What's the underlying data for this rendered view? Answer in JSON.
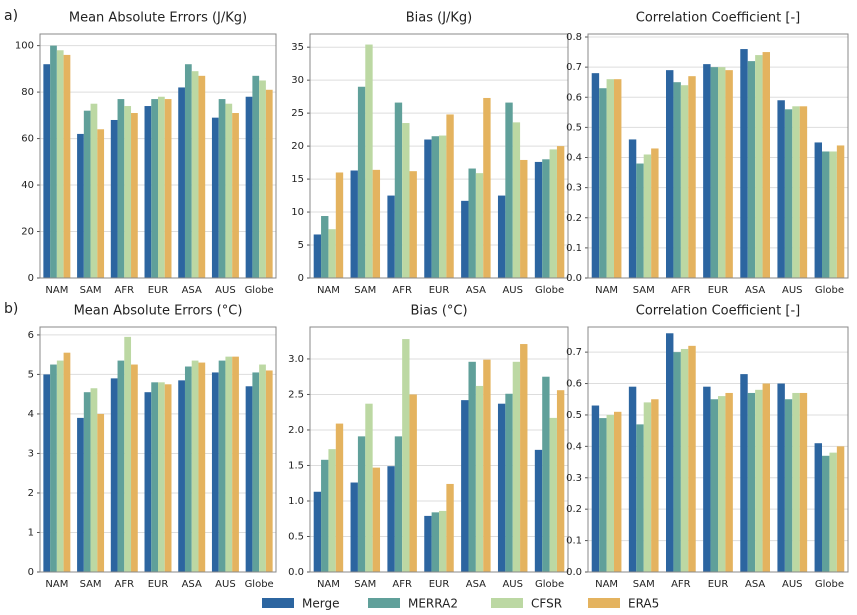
{
  "legend": [
    {
      "name": "Merge",
      "color": "#2c65a0"
    },
    {
      "name": "MERRA2",
      "color": "#60a09a"
    },
    {
      "name": "CFSR",
      "color": "#bcd8a3"
    },
    {
      "name": "ERA5",
      "color": "#e4b35f"
    }
  ],
  "chart_data": [
    {
      "type": "bar",
      "panel_label": "a)",
      "title": "Mean Absolute Errors (J/Kg)",
      "categories": [
        "NAM",
        "SAM",
        "AFR",
        "EUR",
        "ASA",
        "AUS",
        "Globe"
      ],
      "series": [
        {
          "values": [
            92,
            62,
            68,
            74,
            82,
            69,
            78
          ]
        },
        {
          "values": [
            100,
            72,
            77,
            77,
            92,
            77,
            87
          ]
        },
        {
          "values": [
            98,
            75,
            74,
            78,
            89,
            75,
            85
          ]
        },
        {
          "values": [
            96,
            64,
            71,
            77,
            87,
            71,
            81
          ]
        }
      ],
      "ylim": [
        0,
        105
      ],
      "yticks": [
        0,
        20,
        40,
        60,
        80,
        100
      ],
      "grid": true
    },
    {
      "type": "bar",
      "title": "Bias (J/Kg)",
      "categories": [
        "NAM",
        "SAM",
        "AFR",
        "EUR",
        "ASA",
        "AUS",
        "Globe"
      ],
      "series": [
        {
          "values": [
            6.6,
            16.3,
            12.5,
            21,
            11.7,
            12.5,
            17.6
          ]
        },
        {
          "values": [
            9.4,
            29,
            26.6,
            21.5,
            16.6,
            26.6,
            18
          ]
        },
        {
          "values": [
            7.4,
            35.4,
            23.5,
            21.6,
            15.9,
            23.6,
            19.5
          ]
        },
        {
          "values": [
            16,
            16.4,
            16.2,
            24.8,
            27.3,
            17.9,
            20
          ]
        }
      ],
      "ylim": [
        0,
        37
      ],
      "yticks": [
        0,
        5,
        10,
        15,
        20,
        25,
        30,
        35
      ],
      "grid": true
    },
    {
      "type": "bar",
      "title": "Correlation Coefficient [-]",
      "categories": [
        "NAM",
        "SAM",
        "AFR",
        "EUR",
        "ASA",
        "AUS",
        "Globe"
      ],
      "series": [
        {
          "values": [
            0.68,
            0.46,
            0.69,
            0.71,
            0.76,
            0.59,
            0.45
          ]
        },
        {
          "values": [
            0.63,
            0.38,
            0.65,
            0.7,
            0.72,
            0.56,
            0.42
          ]
        },
        {
          "values": [
            0.66,
            0.41,
            0.64,
            0.7,
            0.74,
            0.57,
            0.42
          ]
        },
        {
          "values": [
            0.66,
            0.43,
            0.67,
            0.69,
            0.75,
            0.57,
            0.44
          ]
        }
      ],
      "ylim": [
        0,
        0.81
      ],
      "yticks": [
        {
          "value": 0,
          "label": "0.0"
        },
        0.1,
        0.2,
        0.3,
        0.4,
        0.5,
        0.6,
        0.7,
        0.8
      ],
      "grid": true
    },
    {
      "type": "bar",
      "panel_label": "b)",
      "title": "Mean Absolute Errors (°C)",
      "categories": [
        "NAM",
        "SAM",
        "AFR",
        "EUR",
        "ASA",
        "AUS",
        "Globe"
      ],
      "series": [
        {
          "values": [
            5.0,
            3.9,
            4.9,
            4.55,
            4.85,
            5.05,
            4.7
          ]
        },
        {
          "values": [
            5.25,
            4.55,
            5.35,
            4.8,
            5.2,
            5.35,
            5.05
          ]
        },
        {
          "values": [
            5.35,
            4.65,
            5.95,
            4.8,
            5.35,
            5.45,
            5.25
          ]
        },
        {
          "values": [
            5.55,
            4.0,
            5.25,
            4.75,
            5.3,
            5.45,
            5.1
          ]
        }
      ],
      "ylim": [
        0,
        6.2
      ],
      "yticks": [
        0,
        1,
        2,
        3,
        4,
        5,
        6
      ],
      "grid": true
    },
    {
      "type": "bar",
      "title": "Bias (°C)",
      "categories": [
        "NAM",
        "SAM",
        "AFR",
        "EUR",
        "ASA",
        "AUS",
        "Globe"
      ],
      "series": [
        {
          "values": [
            1.13,
            1.26,
            1.49,
            0.79,
            2.42,
            2.37,
            1.72
          ]
        },
        {
          "values": [
            1.58,
            1.91,
            1.91,
            0.84,
            2.96,
            2.51,
            2.75
          ]
        },
        {
          "values": [
            1.73,
            2.37,
            3.28,
            0.86,
            2.62,
            2.96,
            2.17
          ]
        },
        {
          "values": [
            2.09,
            1.47,
            2.5,
            1.24,
            2.99,
            3.21,
            2.56
          ]
        }
      ],
      "ylim": [
        0,
        3.45
      ],
      "yticks": [
        {
          "value": 0,
          "label": "0.0"
        },
        0.5,
        {
          "value": 1,
          "label": "1.0"
        },
        1.5,
        {
          "value": 2,
          "label": "2.0"
        },
        2.5,
        {
          "value": 3,
          "label": "3.0"
        }
      ],
      "grid": true
    },
    {
      "type": "bar",
      "title": "Correlation Coefficient [-]",
      "categories": [
        "NAM",
        "SAM",
        "AFR",
        "EUR",
        "ASA",
        "AUS",
        "Globe"
      ],
      "series": [
        {
          "values": [
            0.53,
            0.59,
            0.76,
            0.59,
            0.63,
            0.6,
            0.41
          ]
        },
        {
          "values": [
            0.49,
            0.47,
            0.7,
            0.55,
            0.57,
            0.55,
            0.37
          ]
        },
        {
          "values": [
            0.5,
            0.54,
            0.71,
            0.56,
            0.58,
            0.57,
            0.38
          ]
        },
        {
          "values": [
            0.51,
            0.55,
            0.72,
            0.57,
            0.6,
            0.57,
            0.4
          ]
        }
      ],
      "ylim": [
        0,
        0.78
      ],
      "yticks": [
        {
          "value": 0,
          "label": "0.0"
        },
        0.1,
        0.2,
        0.3,
        0.4,
        0.5,
        0.6,
        0.7
      ],
      "grid": true
    }
  ]
}
